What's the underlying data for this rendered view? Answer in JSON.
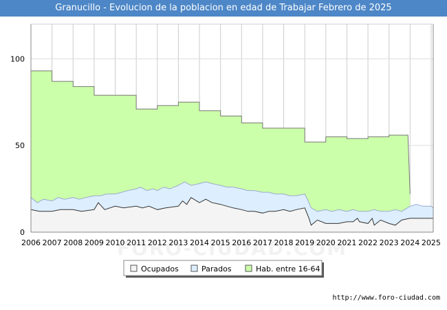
{
  "chart_data": {
    "type": "area",
    "title": "Granucillo - Evolucion de la poblacion en edad de Trabajar Febrero de 2025",
    "watermark": "FORO-CIUDAD.COM",
    "source": "http://www.foro-ciudad.com",
    "x_ticks": [
      "2006",
      "2007",
      "2008",
      "2009",
      "2010",
      "2011",
      "2012",
      "2013",
      "2014",
      "2015",
      "2016",
      "2017",
      "2018",
      "2019",
      "2020",
      "2021",
      "2022",
      "2023",
      "2024",
      "2025"
    ],
    "xlim": [
      2006,
      2025.1
    ],
    "y_ticks": [
      "0",
      "50",
      "100"
    ],
    "ylim": [
      0,
      120
    ],
    "grid": true,
    "legend_position": "bottom",
    "series": [
      {
        "name": "Hab. entre 16-64",
        "color": "#ccffaa",
        "line_color": "#777777",
        "points": [
          [
            2006,
            93
          ],
          [
            2007,
            93
          ],
          [
            2007,
            87
          ],
          [
            2008,
            87
          ],
          [
            2008,
            84
          ],
          [
            2009,
            84
          ],
          [
            2009,
            79
          ],
          [
            2011,
            79
          ],
          [
            2011,
            71
          ],
          [
            2012,
            71
          ],
          [
            2012,
            73
          ],
          [
            2013,
            73
          ],
          [
            2013,
            75
          ],
          [
            2014,
            75
          ],
          [
            2014,
            70
          ],
          [
            2015,
            70
          ],
          [
            2015,
            67
          ],
          [
            2016,
            67
          ],
          [
            2016,
            63
          ],
          [
            2017,
            63
          ],
          [
            2017,
            60
          ],
          [
            2019,
            60
          ],
          [
            2019,
            52
          ],
          [
            2020,
            52
          ],
          [
            2020,
            55
          ],
          [
            2021,
            55
          ],
          [
            2021,
            54
          ],
          [
            2022,
            54
          ],
          [
            2022,
            55
          ],
          [
            2023,
            55
          ],
          [
            2023,
            56
          ],
          [
            2023.9,
            56
          ],
          [
            2024,
            22
          ]
        ]
      },
      {
        "name": "Parados",
        "color": "#ddeeff",
        "line_color": "#99aacc",
        "points": [
          [
            2006,
            20
          ],
          [
            2006.3,
            17
          ],
          [
            2006.6,
            19
          ],
          [
            2007,
            18
          ],
          [
            2007.3,
            20
          ],
          [
            2007.6,
            19
          ],
          [
            2008,
            20
          ],
          [
            2008.3,
            19
          ],
          [
            2008.6,
            20
          ],
          [
            2009,
            21
          ],
          [
            2009.3,
            21
          ],
          [
            2009.6,
            22
          ],
          [
            2010,
            22
          ],
          [
            2010.3,
            23
          ],
          [
            2010.6,
            24
          ],
          [
            2011,
            25
          ],
          [
            2011.2,
            26
          ],
          [
            2011.5,
            24
          ],
          [
            2011.8,
            25
          ],
          [
            2012,
            24
          ],
          [
            2012.3,
            26
          ],
          [
            2012.6,
            25
          ],
          [
            2013,
            27
          ],
          [
            2013.3,
            29
          ],
          [
            2013.6,
            27
          ],
          [
            2014,
            28
          ],
          [
            2014.3,
            29
          ],
          [
            2014.6,
            28
          ],
          [
            2015,
            27
          ],
          [
            2015.3,
            26
          ],
          [
            2015.6,
            26
          ],
          [
            2016,
            25
          ],
          [
            2016.3,
            24
          ],
          [
            2016.6,
            24
          ],
          [
            2017,
            23
          ],
          [
            2017.3,
            23
          ],
          [
            2017.6,
            22
          ],
          [
            2018,
            22
          ],
          [
            2018.3,
            21
          ],
          [
            2018.6,
            21
          ],
          [
            2019,
            22
          ],
          [
            2019.2,
            17
          ],
          [
            2019.3,
            14
          ],
          [
            2019.6,
            12
          ],
          [
            2020,
            13
          ],
          [
            2020.3,
            12
          ],
          [
            2020.6,
            13
          ],
          [
            2021,
            12
          ],
          [
            2021.3,
            13
          ],
          [
            2021.6,
            12
          ],
          [
            2022,
            12
          ],
          [
            2022.3,
            13
          ],
          [
            2022.6,
            12
          ],
          [
            2023,
            12
          ],
          [
            2023.3,
            13
          ],
          [
            2023.6,
            12
          ],
          [
            2024,
            15
          ],
          [
            2024.3,
            16
          ],
          [
            2024.6,
            15
          ],
          [
            2025,
            15
          ],
          [
            2025.1,
            14
          ]
        ]
      },
      {
        "name": "Ocupados",
        "color": "#f4f4f4",
        "line_color": "#333333",
        "points": [
          [
            2006,
            13
          ],
          [
            2006.4,
            12
          ],
          [
            2007,
            12
          ],
          [
            2007.4,
            13
          ],
          [
            2008,
            13
          ],
          [
            2008.4,
            12
          ],
          [
            2009,
            13
          ],
          [
            2009.2,
            17
          ],
          [
            2009.5,
            13
          ],
          [
            2010,
            15
          ],
          [
            2010.4,
            14
          ],
          [
            2011,
            15
          ],
          [
            2011.3,
            14
          ],
          [
            2011.6,
            15
          ],
          [
            2012,
            13
          ],
          [
            2012.4,
            14
          ],
          [
            2013,
            15
          ],
          [
            2013.2,
            18
          ],
          [
            2013.4,
            16
          ],
          [
            2013.6,
            20
          ],
          [
            2014,
            17
          ],
          [
            2014.3,
            19
          ],
          [
            2014.6,
            17
          ],
          [
            2015,
            16
          ],
          [
            2015.3,
            15
          ],
          [
            2015.6,
            14
          ],
          [
            2016,
            13
          ],
          [
            2016.3,
            12
          ],
          [
            2016.6,
            12
          ],
          [
            2017,
            11
          ],
          [
            2017.3,
            12
          ],
          [
            2017.6,
            12
          ],
          [
            2018,
            13
          ],
          [
            2018.3,
            12
          ],
          [
            2018.6,
            13
          ],
          [
            2019,
            14
          ],
          [
            2019.2,
            8
          ],
          [
            2019.3,
            4
          ],
          [
            2019.6,
            7
          ],
          [
            2020,
            5
          ],
          [
            2020.3,
            5
          ],
          [
            2020.6,
            5
          ],
          [
            2021,
            6
          ],
          [
            2021.3,
            6
          ],
          [
            2021.5,
            8
          ],
          [
            2021.6,
            6
          ],
          [
            2022,
            5
          ],
          [
            2022.2,
            8
          ],
          [
            2022.3,
            4
          ],
          [
            2022.6,
            7
          ],
          [
            2023,
            5
          ],
          [
            2023.3,
            4
          ],
          [
            2023.6,
            7
          ],
          [
            2024,
            8
          ],
          [
            2024.3,
            8
          ],
          [
            2024.6,
            8
          ],
          [
            2025,
            8
          ],
          [
            2025.1,
            8
          ]
        ]
      }
    ],
    "legend_order": [
      "Ocupados",
      "Parados",
      "Hab. entre 16-64"
    ]
  }
}
